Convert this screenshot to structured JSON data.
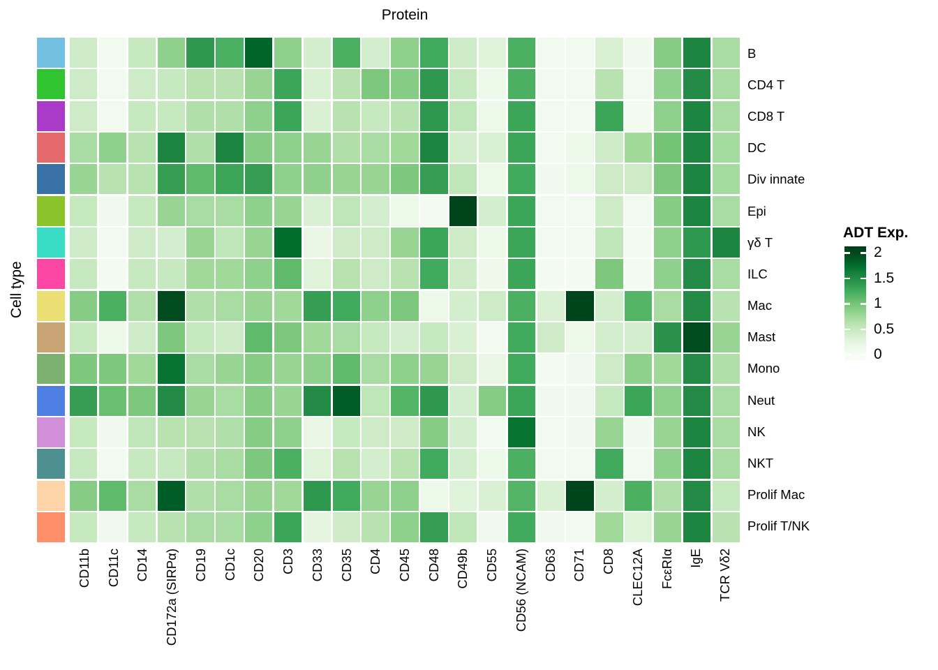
{
  "chart_data": {
    "type": "heatmap",
    "x_title": "Protein",
    "y_title": "Cell type",
    "columns": [
      "CD11b",
      "CD11c",
      "CD14",
      "CD172a (SIRPα)",
      "CD19",
      "CD1c",
      "CD20",
      "CD3",
      "CD33",
      "CD35",
      "CD4",
      "CD45",
      "CD48",
      "CD49b",
      "CD55",
      "CD56 (NCAM)",
      "CD63",
      "CD71",
      "CD8",
      "CLEC12A",
      "FcεRIα",
      "IgE",
      "TCR Vδ2"
    ],
    "value_range": [
      0,
      2
    ],
    "colorscale_name": "Greens (white to dark green)",
    "colorscale_stops": [
      [
        0.0,
        "#F7FCF5"
      ],
      [
        0.25,
        "#E5F5E0"
      ],
      [
        0.5,
        "#C7E9C0"
      ],
      [
        0.75,
        "#A1D99B"
      ],
      [
        1.0,
        "#74C476"
      ],
      [
        1.25,
        "#41AB5D"
      ],
      [
        1.5,
        "#238B45"
      ],
      [
        1.75,
        "#006D2C"
      ],
      [
        2.0,
        "#00441B"
      ]
    ],
    "legend": {
      "title": "ADT Exp.",
      "ticks": [
        2,
        1.5,
        1,
        0.5,
        0
      ]
    },
    "rows": [
      {
        "name": "B",
        "color": "#74C0E3",
        "values": [
          0.45,
          0.08,
          0.5,
          0.85,
          1.4,
          1.2,
          1.8,
          0.85,
          0.4,
          1.2,
          0.4,
          0.85,
          1.25,
          0.45,
          0.3,
          1.2,
          0.08,
          0.08,
          0.35,
          0.1,
          0.9,
          1.55,
          0.7
        ]
      },
      {
        "name": "CD4 T",
        "color": "#30C431",
        "values": [
          0.45,
          0.08,
          0.45,
          0.5,
          0.6,
          0.6,
          0.8,
          1.3,
          0.35,
          0.6,
          0.95,
          0.9,
          1.4,
          0.5,
          0.15,
          1.2,
          0.08,
          0.08,
          0.6,
          0.08,
          0.85,
          1.5,
          0.7
        ]
      },
      {
        "name": "CD8 T",
        "color": "#AA3AC8",
        "values": [
          0.45,
          0.08,
          0.5,
          0.5,
          0.65,
          0.65,
          0.85,
          1.3,
          0.35,
          0.6,
          0.5,
          0.6,
          1.4,
          0.55,
          0.15,
          1.3,
          0.08,
          0.08,
          1.3,
          0.05,
          0.85,
          1.55,
          0.7
        ]
      },
      {
        "name": "DC",
        "color": "#E56A6E",
        "values": [
          0.7,
          0.85,
          0.6,
          1.55,
          0.65,
          1.55,
          0.9,
          0.85,
          0.8,
          0.65,
          0.7,
          0.75,
          1.55,
          0.4,
          0.35,
          1.3,
          0.08,
          0.15,
          0.45,
          0.75,
          1.0,
          1.55,
          0.72
        ]
      },
      {
        "name": "Div innate",
        "color": "#3970A6",
        "values": [
          0.8,
          0.6,
          0.6,
          1.35,
          1.1,
          1.3,
          1.35,
          0.85,
          0.85,
          0.8,
          0.8,
          0.95,
          1.35,
          0.55,
          0.15,
          1.25,
          0.1,
          0.15,
          0.45,
          0.45,
          0.95,
          1.55,
          0.72
        ]
      },
      {
        "name": "Epi",
        "color": "#8BC32B",
        "values": [
          0.5,
          0.1,
          0.5,
          0.8,
          0.7,
          0.7,
          0.85,
          0.8,
          0.35,
          0.55,
          0.4,
          0.15,
          0.05,
          2.0,
          0.4,
          1.3,
          0.08,
          0.08,
          0.45,
          0.08,
          0.9,
          1.55,
          0.7
        ]
      },
      {
        "name": "γδ T",
        "color": "#39DCC5",
        "values": [
          0.45,
          0.08,
          0.45,
          0.4,
          0.8,
          0.55,
          0.8,
          1.75,
          0.2,
          0.45,
          0.45,
          0.8,
          1.3,
          0.45,
          0.15,
          1.3,
          0.08,
          0.08,
          0.55,
          0.05,
          0.85,
          1.4,
          1.55
        ]
      },
      {
        "name": "ILC",
        "color": "#FC46A3",
        "values": [
          0.5,
          0.05,
          0.5,
          0.5,
          0.75,
          0.75,
          0.85,
          1.1,
          0.3,
          0.6,
          0.45,
          0.6,
          1.25,
          0.45,
          0.12,
          1.3,
          0.05,
          0.05,
          0.95,
          0.05,
          0.85,
          1.5,
          0.7
        ]
      },
      {
        "name": "Mac",
        "color": "#EBDF74",
        "values": [
          0.9,
          1.2,
          0.65,
          1.95,
          0.65,
          0.7,
          0.8,
          0.75,
          1.35,
          1.25,
          0.85,
          0.95,
          0.15,
          0.4,
          0.45,
          1.2,
          0.35,
          2.0,
          0.4,
          1.15,
          0.7,
          1.5,
          0.6
        ]
      },
      {
        "name": "Mast",
        "color": "#C9A475",
        "values": [
          0.5,
          0.15,
          0.45,
          0.95,
          0.5,
          0.45,
          1.1,
          0.95,
          0.75,
          0.7,
          0.5,
          0.4,
          0.5,
          0.35,
          0.08,
          1.25,
          0.45,
          0.15,
          0.4,
          0.4,
          1.45,
          1.95,
          0.8
        ]
      },
      {
        "name": "Mono",
        "color": "#7DB172",
        "values": [
          0.95,
          0.95,
          0.75,
          1.7,
          0.7,
          0.8,
          0.9,
          0.8,
          0.85,
          1.1,
          0.7,
          0.85,
          0.8,
          0.45,
          0.2,
          1.25,
          0.05,
          0.1,
          0.45,
          0.85,
          0.75,
          1.5,
          0.65
        ]
      },
      {
        "name": "Neut",
        "color": "#4F7FE3",
        "values": [
          1.35,
          1.05,
          0.95,
          1.5,
          0.8,
          0.7,
          0.9,
          0.8,
          1.5,
          1.85,
          0.55,
          1.15,
          1.4,
          0.4,
          0.9,
          1.3,
          0.1,
          0.1,
          0.5,
          1.3,
          0.85,
          1.5,
          0.7
        ]
      },
      {
        "name": "NK",
        "color": "#D08FD8",
        "values": [
          0.5,
          0.1,
          0.55,
          0.6,
          0.6,
          0.65,
          0.9,
          0.85,
          0.2,
          0.5,
          0.45,
          0.45,
          0.9,
          0.4,
          0.08,
          1.7,
          0.08,
          0.1,
          0.8,
          0.1,
          0.8,
          1.55,
          0.7
        ]
      },
      {
        "name": "NKT",
        "color": "#4E8F91",
        "values": [
          0.5,
          0.08,
          0.5,
          0.5,
          0.65,
          0.7,
          0.95,
          1.2,
          0.3,
          0.6,
          0.4,
          0.6,
          1.25,
          0.4,
          0.15,
          1.2,
          0.08,
          0.08,
          1.25,
          0.08,
          0.85,
          1.55,
          0.7
        ]
      },
      {
        "name": "Prolif Mac",
        "color": "#FDD3A8",
        "values": [
          0.9,
          1.1,
          0.7,
          1.85,
          0.65,
          0.7,
          0.8,
          0.75,
          1.4,
          1.25,
          0.8,
          0.85,
          0.15,
          0.3,
          0.35,
          1.15,
          0.35,
          2.0,
          0.4,
          1.2,
          0.65,
          1.5,
          0.5
        ]
      },
      {
        "name": "Prolif T/NK",
        "color": "#FC8F69",
        "values": [
          0.5,
          0.1,
          0.5,
          0.6,
          0.7,
          0.7,
          0.85,
          1.3,
          0.25,
          0.45,
          0.6,
          0.85,
          1.35,
          0.55,
          0.1,
          1.25,
          0.1,
          0.08,
          0.75,
          0.3,
          0.8,
          1.55,
          0.6
        ]
      }
    ]
  }
}
